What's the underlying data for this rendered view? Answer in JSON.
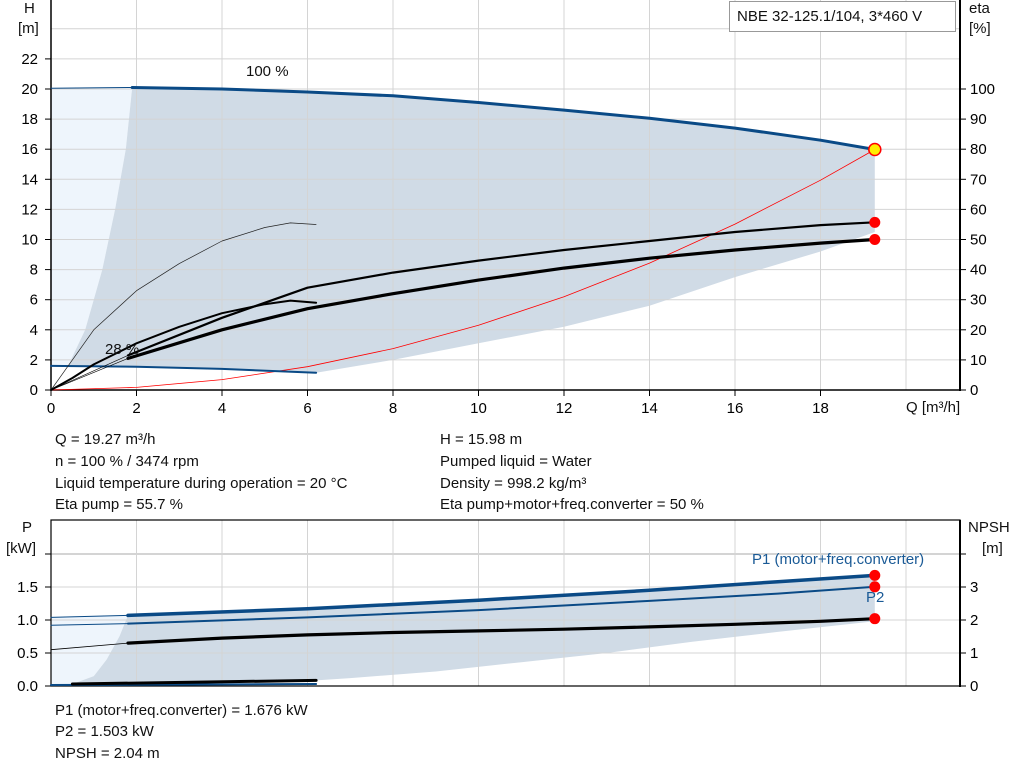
{
  "title_box": "NBE 32-125.1/104, 3*460 V",
  "colors": {
    "blue": "#0a4a86",
    "fill": "#d0dbe6",
    "light_fill": "#eef5fc",
    "red": "#ff0000",
    "duty_point": "#ffee00",
    "grid": "#d4d4d4"
  },
  "info_top": {
    "left": [
      "Q = 19.27 m³/h",
      "n = 100 % / 3474 rpm",
      "Liquid temperature during operation = 20 °C",
      "Eta pump = 55.7 %"
    ],
    "right": [
      "H = 15.98 m",
      "Pumped liquid = Water",
      "Density = 998.2 kg/m³",
      "Eta pump+motor+freq.converter = 50 %"
    ]
  },
  "info_bottom": [
    "P1 (motor+freq.converter) = 1.676 kW",
    "P2 = 1.503 kW",
    "NPSH = 2.04 m"
  ],
  "chart_data": [
    {
      "type": "line",
      "yaxis_left": {
        "label": "H",
        "unit": "[m]",
        "range": [
          0,
          24
        ],
        "ticks": [
          "0",
          "2",
          "4",
          "6",
          "8",
          "10",
          "12",
          "14",
          "16",
          "18",
          "20",
          "22"
        ]
      },
      "yaxis_right": {
        "label": "eta",
        "unit": "[%]",
        "range": [
          0,
          110
        ],
        "ticks": [
          "0",
          "10",
          "20",
          "30",
          "40",
          "50",
          "60",
          "70",
          "80",
          "90",
          "100"
        ]
      },
      "xaxis": {
        "label": "Q [m³/h]",
        "range": [
          0,
          21
        ],
        "ticks": [
          "0",
          "2",
          "4",
          "6",
          "8",
          "10",
          "12",
          "14",
          "16",
          "18"
        ]
      },
      "grid": true,
      "annotations": [
        "100 %",
        "28 %"
      ],
      "head_100": [
        [
          1.9,
          20.1
        ],
        [
          4,
          20.0
        ],
        [
          6,
          19.8
        ],
        [
          8,
          19.55
        ],
        [
          10,
          19.1
        ],
        [
          12,
          18.6
        ],
        [
          14,
          18.05
        ],
        [
          16,
          17.4
        ],
        [
          18,
          16.6
        ],
        [
          19.27,
          15.98
        ]
      ],
      "head_100_extension": [
        [
          0,
          20.05
        ],
        [
          1.9,
          20.1
        ]
      ],
      "head_28": [
        [
          0,
          1.6
        ],
        [
          2,
          1.55
        ],
        [
          4,
          1.4
        ],
        [
          6.2,
          1.15
        ]
      ],
      "operating_area_lower": [
        [
          19.27,
          10.5
        ],
        [
          18,
          9.2
        ],
        [
          16,
          7.5
        ],
        [
          14,
          5.6
        ],
        [
          12,
          4.2
        ],
        [
          10,
          3.1
        ],
        [
          8,
          2.0
        ],
        [
          6.2,
          1.15
        ]
      ],
      "operating_area_left": [
        [
          0.4,
          1.6
        ],
        [
          0.8,
          4
        ],
        [
          1.2,
          8
        ],
        [
          1.5,
          12
        ],
        [
          1.75,
          16
        ],
        [
          1.9,
          20.1
        ]
      ],
      "system_curve": [
        [
          0,
          0
        ],
        [
          2,
          0.17
        ],
        [
          4,
          0.69
        ],
        [
          6,
          1.55
        ],
        [
          8,
          2.75
        ],
        [
          10,
          4.3
        ],
        [
          12,
          6.2
        ],
        [
          14,
          8.43
        ],
        [
          16,
          11.02
        ],
        [
          18,
          13.94
        ],
        [
          19.27,
          15.98
        ]
      ],
      "eta_pump_100": [
        [
          0,
          0
        ],
        [
          1.8,
          11.5
        ],
        [
          4,
          24
        ],
        [
          6,
          34
        ],
        [
          8,
          39
        ],
        [
          10,
          43
        ],
        [
          12,
          46.5
        ],
        [
          14,
          49.5
        ],
        [
          16,
          52.5
        ],
        [
          18,
          54.8
        ],
        [
          19.27,
          55.7
        ]
      ],
      "eta_total_100": [
        [
          0,
          0
        ],
        [
          1.8,
          10.5
        ],
        [
          4,
          20
        ],
        [
          6,
          27
        ],
        [
          8,
          32
        ],
        [
          10,
          36.5
        ],
        [
          12,
          40.5
        ],
        [
          14,
          43.8
        ],
        [
          16,
          46.5
        ],
        [
          18,
          48.8
        ],
        [
          19.27,
          50
        ]
      ],
      "eta_pump_28": [
        [
          0,
          0
        ],
        [
          0.5,
          4
        ],
        [
          1,
          8.5
        ],
        [
          2,
          15.5
        ],
        [
          3,
          21
        ],
        [
          4,
          25.5
        ],
        [
          5,
          28.5
        ],
        [
          5.6,
          29.7
        ],
        [
          6.2,
          29
        ]
      ],
      "eta_28_thin": [
        [
          0,
          0
        ],
        [
          1,
          20
        ],
        [
          2,
          33
        ],
        [
          3,
          42
        ],
        [
          4,
          49.5
        ],
        [
          5,
          54
        ],
        [
          5.6,
          55.5
        ],
        [
          6.2,
          55
        ]
      ],
      "duty_point": {
        "Q": 19.27,
        "H": 15.98,
        "eta_pump": 55.7,
        "eta_total": 50
      }
    },
    {
      "type": "line",
      "yaxis_left": {
        "label": "P",
        "unit": "[kW]",
        "range": [
          0,
          2.5
        ],
        "ticks": [
          "0.0",
          "0.5",
          "1.0",
          "1.5"
        ]
      },
      "yaxis_right": {
        "label": "NPSH",
        "unit": "[m]",
        "range": [
          0,
          5
        ],
        "ticks": [
          "0",
          "1",
          "2",
          "3"
        ]
      },
      "grid": true,
      "series_labels": [
        "P1 (motor+freq.converter)",
        "P2"
      ],
      "p1": [
        [
          1.8,
          1.07
        ],
        [
          6,
          1.17
        ],
        [
          10,
          1.3
        ],
        [
          14,
          1.45
        ],
        [
          17,
          1.58
        ],
        [
          19.27,
          1.676
        ]
      ],
      "p1_extension": [
        [
          0,
          1.04
        ],
        [
          1.8,
          1.07
        ]
      ],
      "p2": [
        [
          1.8,
          0.945
        ],
        [
          6,
          1.04
        ],
        [
          10,
          1.15
        ],
        [
          14,
          1.29
        ],
        [
          17,
          1.4
        ],
        [
          19.27,
          1.503
        ]
      ],
      "p2_extension": [
        [
          0,
          0.92
        ],
        [
          1.8,
          0.945
        ]
      ],
      "npsh": [
        [
          1.8,
          1.3
        ],
        [
          4,
          1.45
        ],
        [
          6,
          1.55
        ],
        [
          8,
          1.62
        ],
        [
          10,
          1.67
        ],
        [
          12,
          1.72
        ],
        [
          14,
          1.79
        ],
        [
          16,
          1.87
        ],
        [
          18,
          1.96
        ],
        [
          19.27,
          2.04
        ]
      ],
      "npsh_extension": [
        [
          0,
          1.1
        ],
        [
          1.8,
          1.3
        ]
      ],
      "p1_28": [
        [
          0.5,
          0.03
        ],
        [
          6.2,
          0.085
        ]
      ],
      "p2_28": [
        [
          0,
          0.015
        ],
        [
          6.2,
          0.03
        ]
      ],
      "area_lower": [
        [
          19.27,
          0.98
        ],
        [
          17,
          0.82
        ],
        [
          15,
          0.67
        ],
        [
          13,
          0.5
        ],
        [
          11,
          0.36
        ],
        [
          9,
          0.22
        ],
        [
          7,
          0.12
        ],
        [
          6.2,
          0.085
        ]
      ],
      "area_left": [
        [
          0.5,
          0.03
        ],
        [
          1,
          0.15
        ],
        [
          1.3,
          0.4
        ],
        [
          1.6,
          0.75
        ],
        [
          1.8,
          1.07
        ]
      ],
      "duty_point": {
        "P1": 1.676,
        "P2": 1.503,
        "NPSH": 2.04
      }
    }
  ]
}
